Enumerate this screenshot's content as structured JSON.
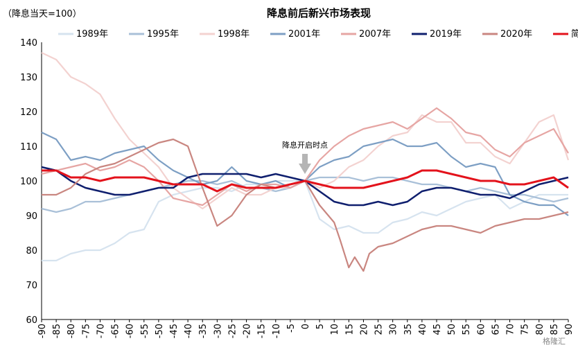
{
  "chart_data": {
    "type": "line",
    "title": "降息前后新兴市场表现",
    "unit_label": "（降息当天=100）",
    "annotation": "降息开启时点",
    "watermark": "格隆汇",
    "ylim": [
      60,
      140
    ],
    "yticks": [
      60,
      70,
      80,
      90,
      100,
      110,
      120,
      130,
      140
    ],
    "xlim": [
      -90,
      90
    ],
    "xticks": [
      -90,
      -85,
      -80,
      -75,
      -70,
      -65,
      -60,
      -55,
      -50,
      -45,
      -40,
      -35,
      -30,
      -25,
      -20,
      -15,
      -10,
      -5,
      0,
      5,
      10,
      15,
      20,
      25,
      30,
      35,
      40,
      45,
      50,
      55,
      60,
      65,
      70,
      75,
      80,
      85,
      90
    ],
    "legend_position": "top",
    "grid": false,
    "series": [
      {
        "name": "1989年",
        "color": "#d6e3ef",
        "width": 2.2,
        "points": [
          [
            -90,
            77
          ],
          [
            -85,
            77
          ],
          [
            -80,
            79
          ],
          [
            -75,
            80
          ],
          [
            -70,
            80
          ],
          [
            -65,
            82
          ],
          [
            -60,
            85
          ],
          [
            -55,
            86
          ],
          [
            -50,
            94
          ],
          [
            -45,
            96
          ],
          [
            -40,
            97
          ],
          [
            -35,
            98
          ],
          [
            -30,
            98
          ],
          [
            -25,
            97
          ],
          [
            -20,
            99
          ],
          [
            -15,
            99
          ],
          [
            -10,
            100
          ],
          [
            -5,
            100
          ],
          [
            0,
            100
          ],
          [
            5,
            89
          ],
          [
            10,
            86
          ],
          [
            15,
            87
          ],
          [
            20,
            85
          ],
          [
            25,
            85
          ],
          [
            30,
            88
          ],
          [
            35,
            89
          ],
          [
            40,
            91
          ],
          [
            45,
            90
          ],
          [
            50,
            92
          ],
          [
            55,
            94
          ],
          [
            60,
            95
          ],
          [
            65,
            96
          ],
          [
            70,
            92
          ],
          [
            75,
            94
          ],
          [
            80,
            96
          ],
          [
            85,
            96
          ],
          [
            90,
            96
          ]
        ]
      },
      {
        "name": "1995年",
        "color": "#a9c0d8",
        "width": 2.2,
        "points": [
          [
            -90,
            92
          ],
          [
            -85,
            91
          ],
          [
            -80,
            92
          ],
          [
            -75,
            94
          ],
          [
            -70,
            94
          ],
          [
            -65,
            95
          ],
          [
            -60,
            96
          ],
          [
            -55,
            97
          ],
          [
            -50,
            98
          ],
          [
            -45,
            99
          ],
          [
            -40,
            100
          ],
          [
            -35,
            100
          ],
          [
            -30,
            99
          ],
          [
            -25,
            100
          ],
          [
            -20,
            98
          ],
          [
            -15,
            98
          ],
          [
            -10,
            97
          ],
          [
            -5,
            98
          ],
          [
            0,
            100
          ],
          [
            5,
            101
          ],
          [
            10,
            101
          ],
          [
            15,
            101
          ],
          [
            20,
            100
          ],
          [
            25,
            101
          ],
          [
            30,
            101
          ],
          [
            35,
            100
          ],
          [
            40,
            99
          ],
          [
            45,
            99
          ],
          [
            50,
            98
          ],
          [
            55,
            97
          ],
          [
            60,
            98
          ],
          [
            65,
            97
          ],
          [
            70,
            96
          ],
          [
            75,
            96
          ],
          [
            80,
            95
          ],
          [
            85,
            94
          ],
          [
            90,
            95
          ]
        ]
      },
      {
        "name": "1998年",
        "color": "#f3d2d0",
        "width": 2.2,
        "points": [
          [
            -90,
            137
          ],
          [
            -85,
            135
          ],
          [
            -80,
            130
          ],
          [
            -75,
            128
          ],
          [
            -70,
            125
          ],
          [
            -65,
            118
          ],
          [
            -60,
            112
          ],
          [
            -55,
            108
          ],
          [
            -50,
            104
          ],
          [
            -45,
            98
          ],
          [
            -40,
            95
          ],
          [
            -35,
            92
          ],
          [
            -30,
            95
          ],
          [
            -25,
            98
          ],
          [
            -20,
            96
          ],
          [
            -15,
            96
          ],
          [
            -10,
            98
          ],
          [
            -5,
            98
          ],
          [
            0,
            100
          ],
          [
            5,
            98
          ],
          [
            10,
            100
          ],
          [
            15,
            104
          ],
          [
            20,
            106
          ],
          [
            25,
            110
          ],
          [
            30,
            113
          ],
          [
            35,
            114
          ],
          [
            40,
            119
          ],
          [
            45,
            117
          ],
          [
            50,
            117
          ],
          [
            55,
            111
          ],
          [
            60,
            111
          ],
          [
            65,
            107
          ],
          [
            70,
            105
          ],
          [
            75,
            111
          ],
          [
            80,
            117
          ],
          [
            85,
            119
          ],
          [
            90,
            106
          ]
        ]
      },
      {
        "name": "2001年",
        "color": "#7d9fc4",
        "width": 2.2,
        "points": [
          [
            -90,
            114
          ],
          [
            -85,
            112
          ],
          [
            -80,
            106
          ],
          [
            -75,
            107
          ],
          [
            -70,
            106
          ],
          [
            -65,
            108
          ],
          [
            -60,
            109
          ],
          [
            -55,
            110
          ],
          [
            -50,
            106
          ],
          [
            -45,
            103
          ],
          [
            -40,
            101
          ],
          [
            -35,
            99
          ],
          [
            -30,
            100
          ],
          [
            -25,
            104
          ],
          [
            -20,
            100
          ],
          [
            -15,
            99
          ],
          [
            -10,
            100
          ],
          [
            -5,
            98
          ],
          [
            0,
            100
          ],
          [
            5,
            104
          ],
          [
            10,
            106
          ],
          [
            15,
            107
          ],
          [
            20,
            110
          ],
          [
            25,
            111
          ],
          [
            30,
            112
          ],
          [
            35,
            110
          ],
          [
            40,
            110
          ],
          [
            45,
            111
          ],
          [
            50,
            107
          ],
          [
            55,
            104
          ],
          [
            60,
            105
          ],
          [
            65,
            104
          ],
          [
            70,
            96
          ],
          [
            75,
            94
          ],
          [
            80,
            93
          ],
          [
            85,
            93
          ],
          [
            90,
            90
          ]
        ]
      },
      {
        "name": "2007年",
        "color": "#e6a5a3",
        "width": 2.2,
        "points": [
          [
            -90,
            102
          ],
          [
            -85,
            103
          ],
          [
            -80,
            104
          ],
          [
            -75,
            105
          ],
          [
            -70,
            103
          ],
          [
            -65,
            104
          ],
          [
            -60,
            106
          ],
          [
            -55,
            104
          ],
          [
            -50,
            100
          ],
          [
            -45,
            95
          ],
          [
            -40,
            94
          ],
          [
            -35,
            93
          ],
          [
            -30,
            96
          ],
          [
            -25,
            99
          ],
          [
            -20,
            97
          ],
          [
            -15,
            99
          ],
          [
            -10,
            99
          ],
          [
            -5,
            98
          ],
          [
            0,
            100
          ],
          [
            5,
            106
          ],
          [
            10,
            110
          ],
          [
            15,
            113
          ],
          [
            20,
            115
          ],
          [
            25,
            116
          ],
          [
            30,
            117
          ],
          [
            35,
            115
          ],
          [
            40,
            118
          ],
          [
            45,
            121
          ],
          [
            50,
            118
          ],
          [
            55,
            114
          ],
          [
            60,
            113
          ],
          [
            65,
            109
          ],
          [
            70,
            107
          ],
          [
            75,
            111
          ],
          [
            80,
            113
          ],
          [
            85,
            115
          ],
          [
            90,
            108
          ]
        ]
      },
      {
        "name": "2019年",
        "color": "#0f1f6e",
        "width": 2.6,
        "points": [
          [
            -90,
            104
          ],
          [
            -85,
            103
          ],
          [
            -80,
            100
          ],
          [
            -75,
            98
          ],
          [
            -70,
            97
          ],
          [
            -65,
            96
          ],
          [
            -60,
            96
          ],
          [
            -55,
            97
          ],
          [
            -50,
            98
          ],
          [
            -45,
            98
          ],
          [
            -40,
            101
          ],
          [
            -35,
            102
          ],
          [
            -30,
            102
          ],
          [
            -25,
            102
          ],
          [
            -20,
            102
          ],
          [
            -15,
            101
          ],
          [
            -10,
            102
          ],
          [
            -5,
            101
          ],
          [
            0,
            100
          ],
          [
            5,
            97
          ],
          [
            10,
            94
          ],
          [
            15,
            93
          ],
          [
            20,
            93
          ],
          [
            25,
            94
          ],
          [
            30,
            93
          ],
          [
            35,
            94
          ],
          [
            40,
            97
          ],
          [
            45,
            98
          ],
          [
            50,
            98
          ],
          [
            55,
            97
          ],
          [
            60,
            96
          ],
          [
            65,
            96
          ],
          [
            70,
            95
          ],
          [
            75,
            97
          ],
          [
            80,
            99
          ],
          [
            85,
            100
          ],
          [
            90,
            101
          ]
        ]
      },
      {
        "name": "2020年",
        "color": "#c98680",
        "width": 2.2,
        "points": [
          [
            -90,
            96
          ],
          [
            -85,
            96
          ],
          [
            -80,
            98
          ],
          [
            -75,
            102
          ],
          [
            -70,
            104
          ],
          [
            -65,
            105
          ],
          [
            -60,
            107
          ],
          [
            -55,
            109
          ],
          [
            -50,
            111
          ],
          [
            -45,
            112
          ],
          [
            -40,
            110
          ],
          [
            -35,
            98
          ],
          [
            -30,
            87
          ],
          [
            -25,
            90
          ],
          [
            -20,
            96
          ],
          [
            -15,
            99
          ],
          [
            -10,
            98
          ],
          [
            -5,
            99
          ],
          [
            0,
            100
          ],
          [
            5,
            93
          ],
          [
            10,
            88
          ],
          [
            12,
            83
          ],
          [
            15,
            75
          ],
          [
            17,
            78
          ],
          [
            20,
            74
          ],
          [
            22,
            79
          ],
          [
            25,
            81
          ],
          [
            30,
            82
          ],
          [
            35,
            84
          ],
          [
            40,
            86
          ],
          [
            45,
            87
          ],
          [
            50,
            87
          ],
          [
            55,
            86
          ],
          [
            60,
            85
          ],
          [
            65,
            87
          ],
          [
            70,
            88
          ],
          [
            75,
            89
          ],
          [
            80,
            89
          ],
          [
            85,
            90
          ],
          [
            90,
            91
          ]
        ]
      },
      {
        "name": "简单平均",
        "color": "#e3121b",
        "width": 3.0,
        "points": [
          [
            -90,
            103
          ],
          [
            -85,
            103
          ],
          [
            -80,
            101
          ],
          [
            -75,
            101
          ],
          [
            -70,
            100
          ],
          [
            -65,
            101
          ],
          [
            -60,
            101
          ],
          [
            -55,
            101
          ],
          [
            -50,
            100
          ],
          [
            -45,
            99
          ],
          [
            -40,
            99
          ],
          [
            -35,
            99
          ],
          [
            -30,
            97
          ],
          [
            -25,
            99
          ],
          [
            -20,
            98
          ],
          [
            -15,
            98
          ],
          [
            -10,
            98
          ],
          [
            -5,
            99
          ],
          [
            0,
            100
          ],
          [
            5,
            99
          ],
          [
            10,
            98
          ],
          [
            15,
            98
          ],
          [
            20,
            98
          ],
          [
            25,
            99
          ],
          [
            30,
            100
          ],
          [
            35,
            101
          ],
          [
            40,
            103
          ],
          [
            45,
            103
          ],
          [
            50,
            102
          ],
          [
            55,
            101
          ],
          [
            60,
            100
          ],
          [
            65,
            100
          ],
          [
            70,
            99
          ],
          [
            75,
            99
          ],
          [
            80,
            100
          ],
          [
            85,
            101
          ],
          [
            90,
            98
          ]
        ]
      }
    ]
  }
}
